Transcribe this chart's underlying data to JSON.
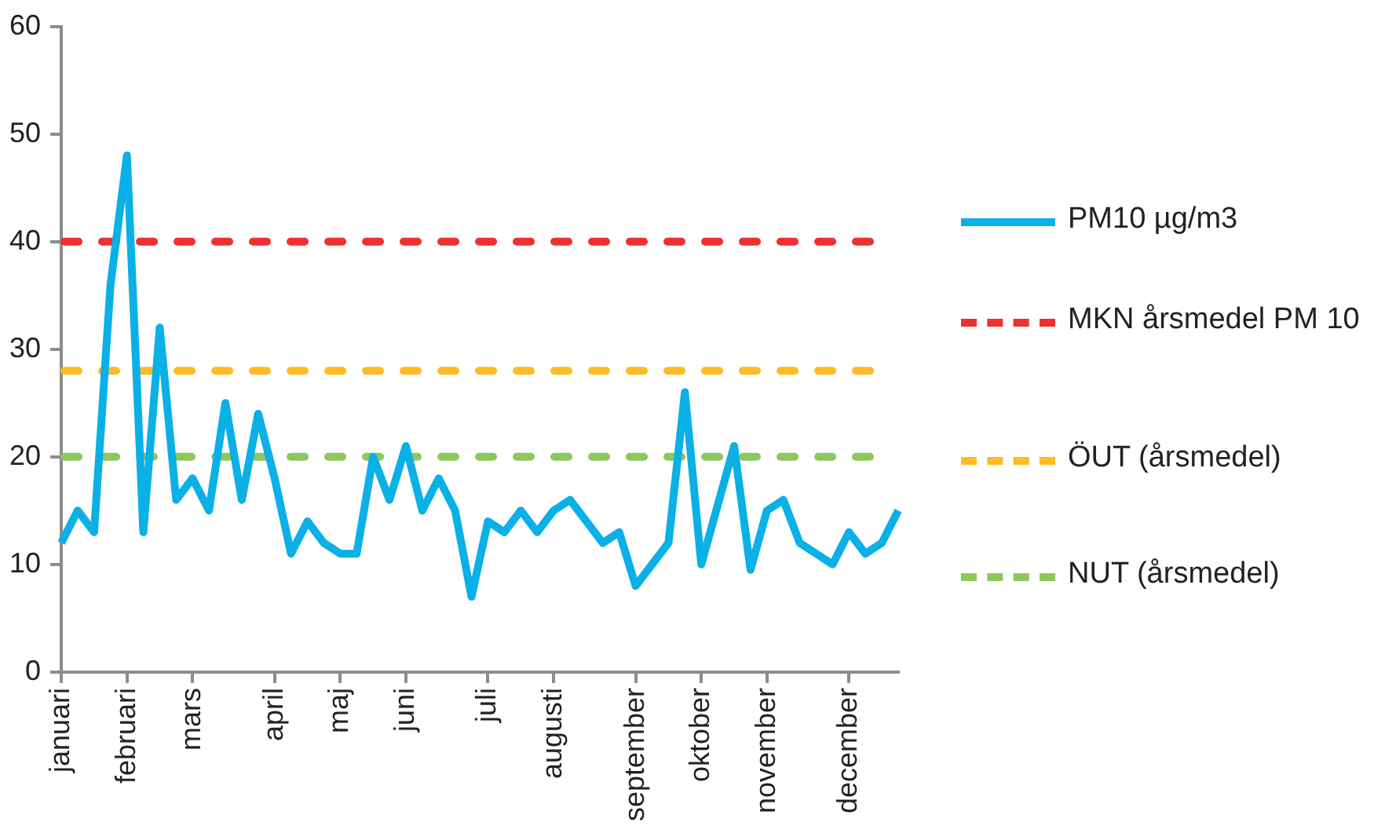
{
  "chart_data": {
    "type": "line",
    "categories": [
      "januari",
      null,
      null,
      null,
      "februari",
      null,
      null,
      null,
      "mars",
      null,
      null,
      null,
      null,
      "april",
      null,
      null,
      null,
      "maj",
      null,
      null,
      null,
      "juni",
      null,
      null,
      null,
      null,
      "juli",
      null,
      null,
      null,
      "augusti",
      null,
      null,
      null,
      null,
      "september",
      null,
      null,
      null,
      "oktober",
      null,
      null,
      null,
      "november",
      null,
      null,
      null,
      null,
      "december",
      null,
      null,
      null
    ],
    "series": [
      {
        "name": "PM10 µg/m3",
        "color": "#0ab0e6",
        "values": [
          12,
          15,
          13,
          36,
          48,
          13,
          32,
          16,
          18,
          15,
          25,
          16,
          24,
          18,
          11,
          14,
          12,
          11,
          11,
          20,
          16,
          21,
          15,
          18,
          15,
          7,
          14,
          13,
          15,
          13,
          15,
          16,
          14,
          12,
          13,
          8,
          10,
          12,
          26,
          10,
          15.5,
          21,
          9.5,
          15,
          16,
          12,
          11,
          10,
          13,
          11,
          12,
          15
        ]
      }
    ],
    "ref_lines": [
      {
        "axis": "y",
        "value": 40,
        "label": "MKN årsmedel PM 10",
        "color": "#ee3030",
        "line_style": "dashed"
      },
      {
        "axis": "y",
        "value": 28,
        "label": "ÖUT (årsmedel)",
        "color": "#ffbb22",
        "line_style": "dashed"
      },
      {
        "axis": "y",
        "value": 20,
        "label": "NUT (årsmedel)",
        "color": "#8cc85a",
        "line_style": "dashed"
      }
    ],
    "ylim": [
      0,
      60
    ],
    "yticks": [
      0,
      10,
      20,
      30,
      40,
      50,
      60
    ],
    "grid": false,
    "legend": "right",
    "marker": "none",
    "line_style": "solid"
  }
}
